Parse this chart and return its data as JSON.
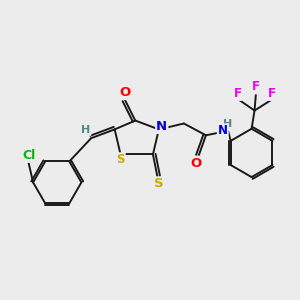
{
  "bg_color": "#ececec",
  "bond_color": "#1a1a1a",
  "atom_colors": {
    "N": "#0000dd",
    "O": "#ff0000",
    "S": "#ccaa00",
    "Cl": "#00bb00",
    "F": "#ee00ee",
    "H": "#558888",
    "C": "#1a1a1a"
  },
  "font_size": 8.5,
  "figsize": [
    3.0,
    3.0
  ],
  "dpi": 100
}
